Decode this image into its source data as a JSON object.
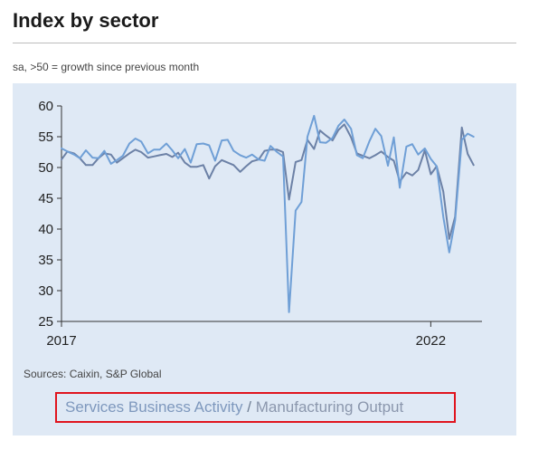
{
  "header": {
    "title": "Index by sector",
    "subtitle": "sa, >50 = growth since previous month"
  },
  "footer": {
    "sources": "Sources: Caixin, S&P Global"
  },
  "legend": {
    "services_label": "Services Business Activity",
    "separator": "/",
    "manufacturing_label": "Manufacturing Output"
  },
  "colors": {
    "services": "#6f9fd6",
    "manufacturing": "#6c81a6",
    "panel": "#dfe9f5",
    "highlight_border": "#e0141e"
  },
  "chart_data": {
    "type": "line",
    "ylim": [
      25,
      60
    ],
    "yticks": [
      25,
      30,
      35,
      40,
      45,
      50,
      55,
      60
    ],
    "xrange": [
      2017.0,
      2022.62
    ],
    "xticks": [
      {
        "value": 2017,
        "label": "2017"
      },
      {
        "value": 2022,
        "label": "2022"
      }
    ],
    "grid": false,
    "series": [
      {
        "name": "Services Business Activity",
        "color": "#6f9fd6",
        "x": [
          2017.0,
          2017.08,
          2017.17,
          2017.25,
          2017.33,
          2017.42,
          2017.5,
          2017.58,
          2017.67,
          2017.75,
          2017.83,
          2017.92,
          2018.0,
          2018.08,
          2018.17,
          2018.25,
          2018.33,
          2018.42,
          2018.5,
          2018.58,
          2018.67,
          2018.75,
          2018.83,
          2018.92,
          2019.0,
          2019.08,
          2019.17,
          2019.25,
          2019.33,
          2019.42,
          2019.5,
          2019.58,
          2019.67,
          2019.75,
          2019.83,
          2019.92,
          2020.0,
          2020.08,
          2020.17,
          2020.25,
          2020.33,
          2020.42,
          2020.5,
          2020.58,
          2020.67,
          2020.75,
          2020.83,
          2020.92,
          2021.0,
          2021.08,
          2021.17,
          2021.25,
          2021.33,
          2021.42,
          2021.5,
          2021.58,
          2021.67,
          2021.75,
          2021.83,
          2021.92,
          2022.0,
          2022.08,
          2022.17,
          2022.25,
          2022.33,
          2022.42,
          2022.5,
          2022.58
        ],
        "y": [
          53.1,
          52.6,
          52.1,
          51.5,
          52.8,
          51.6,
          51.5,
          52.7,
          50.6,
          51.2,
          51.9,
          53.9,
          54.7,
          54.2,
          52.3,
          52.9,
          52.9,
          53.9,
          52.8,
          51.5,
          53.0,
          50.8,
          53.8,
          53.9,
          53.6,
          51.1,
          54.4,
          54.5,
          52.7,
          52.0,
          51.6,
          52.1,
          51.3,
          51.1,
          53.5,
          52.5,
          51.8,
          26.5,
          43.0,
          44.4,
          55.0,
          58.4,
          54.1,
          54.0,
          54.8,
          56.8,
          57.8,
          56.3,
          52.0,
          51.5,
          54.3,
          56.3,
          55.1,
          50.3,
          54.9,
          46.7,
          53.4,
          53.8,
          52.1,
          53.1,
          51.4,
          50.2,
          42.0,
          36.2,
          41.4,
          54.5,
          55.5,
          55.0
        ]
      },
      {
        "name": "Manufacturing Output",
        "color": "#6c81a6",
        "x": [
          2017.0,
          2017.08,
          2017.17,
          2017.25,
          2017.33,
          2017.42,
          2017.5,
          2017.58,
          2017.67,
          2017.75,
          2017.83,
          2017.92,
          2018.0,
          2018.08,
          2018.17,
          2018.25,
          2018.33,
          2018.42,
          2018.5,
          2018.58,
          2018.67,
          2018.75,
          2018.83,
          2018.92,
          2019.0,
          2019.08,
          2019.17,
          2019.25,
          2019.33,
          2019.42,
          2019.5,
          2019.58,
          2019.67,
          2019.75,
          2019.83,
          2019.92,
          2020.0,
          2020.08,
          2020.17,
          2020.25,
          2020.33,
          2020.42,
          2020.5,
          2020.58,
          2020.67,
          2020.75,
          2020.83,
          2020.92,
          2021.0,
          2021.08,
          2021.17,
          2021.25,
          2021.33,
          2021.42,
          2021.5,
          2021.58,
          2021.67,
          2021.75,
          2021.83,
          2021.92,
          2022.0,
          2022.08,
          2022.17,
          2022.25,
          2022.33,
          2022.42,
          2022.5,
          2022.58
        ],
        "y": [
          51.3,
          52.6,
          52.3,
          51.5,
          50.4,
          50.4,
          51.5,
          52.3,
          52.1,
          50.8,
          51.5,
          52.3,
          52.9,
          52.5,
          51.6,
          51.8,
          52.0,
          52.2,
          51.7,
          52.4,
          50.8,
          50.1,
          50.1,
          50.4,
          48.2,
          50.2,
          51.2,
          50.8,
          50.4,
          49.3,
          50.2,
          51.0,
          51.3,
          52.7,
          52.9,
          52.9,
          52.5,
          44.8,
          50.9,
          51.2,
          54.5,
          53.0,
          56.0,
          55.2,
          54.4,
          56.1,
          57.0,
          54.9,
          52.3,
          51.9,
          51.5,
          52.0,
          52.6,
          51.7,
          51.1,
          47.7,
          49.2,
          48.7,
          49.6,
          52.8,
          48.9,
          50.2,
          46.1,
          38.4,
          42.0,
          56.5,
          52.2,
          50.4
        ]
      }
    ]
  }
}
